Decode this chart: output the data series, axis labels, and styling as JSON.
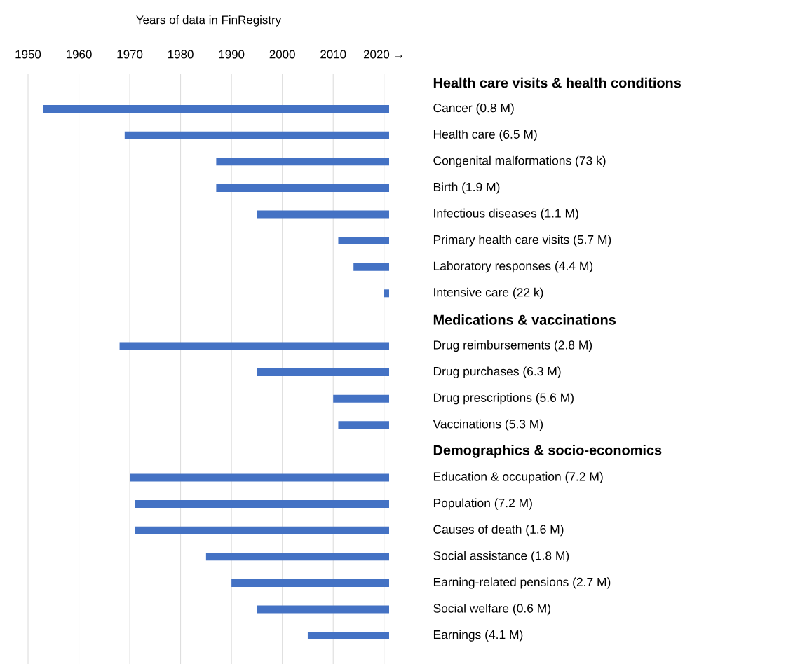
{
  "chart_data": {
    "type": "bar",
    "orientation": "horizontal",
    "xlabel": "Years of data in FinRegistry",
    "categories": [
      "Health care visits & health conditions",
      "Cancer (0.8 M)",
      "Health care (6.5 M)",
      "Congenital malformations (73 k)",
      "Birth (1.9 M)",
      "Infectious diseases (1.1 M)",
      "Primary health care visits (5.7 M)",
      "Laboratory responses (4.4 M)",
      "Intensive care (22 k)",
      "Medications & vaccinations",
      "Drug reimbursements (2.8 M)",
      "Drug purchases (6.3 M)",
      "Drug prescriptions (5.6 M)",
      "Vaccinations (5.3 M)",
      "Demographics & socio-economics",
      "Education & occupation (7.2 M)",
      "Population (7.2 M)",
      "Causes of death (1.6 M)",
      "Social assistance (1.8 M)",
      "Earning-related pensions (2.7 M)",
      "Social welfare (0.6 M)",
      "Earnings (4.1 M)"
    ],
    "base": [
      null,
      1953,
      1969,
      1987,
      1987,
      1995,
      2011,
      2014,
      2020,
      null,
      1968,
      1995,
      2010,
      2011,
      null,
      1970,
      1971,
      1971,
      1985,
      1990,
      1995,
      2005
    ],
    "values": [
      null,
      68,
      52,
      34,
      34,
      26,
      10,
      7,
      1,
      null,
      53,
      26,
      11,
      10,
      null,
      51,
      50,
      50,
      36,
      31,
      26,
      16
    ],
    "color": "#4472c4",
    "xlim": [
      1950,
      2021
    ],
    "xticks": [
      1950,
      1960,
      1970,
      1980,
      1990,
      2000,
      2010,
      {
        "value": 2020,
        "label": "2020 →"
      }
    ],
    "grid": "x"
  }
}
